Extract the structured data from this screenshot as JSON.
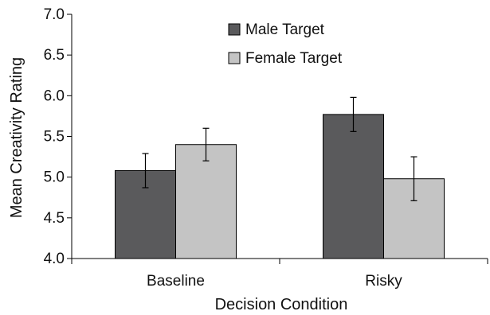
{
  "chart_data": {
    "type": "bar",
    "xlabel": "Decision Condition",
    "ylabel": "Mean Creativity Rating",
    "categories": [
      "Baseline",
      "Risky"
    ],
    "ylim": [
      4.0,
      7.0
    ],
    "yticks": [
      "4.0",
      "4.5",
      "5.0",
      "5.5",
      "6.0",
      "6.5",
      "7.0"
    ],
    "series": [
      {
        "name": "Male Target",
        "color": "#5a5a5c",
        "values": [
          5.08,
          5.77
        ],
        "error": [
          0.21,
          0.21
        ]
      },
      {
        "name": "Female Target",
        "color": "#c4c4c4",
        "values": [
          5.4,
          4.98
        ],
        "error": [
          0.2,
          0.27
        ]
      }
    ],
    "grid": false,
    "legend_position": "top-center"
  }
}
